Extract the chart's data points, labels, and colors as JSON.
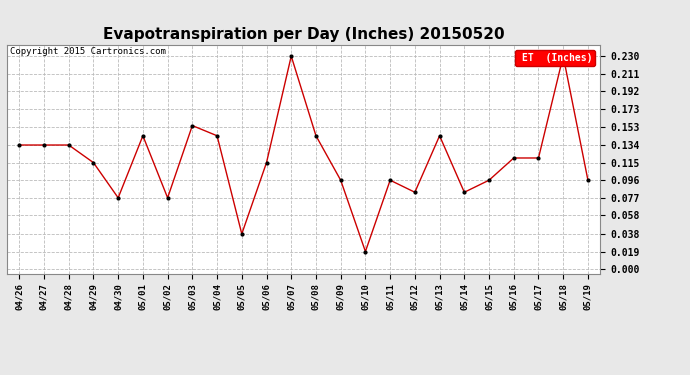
{
  "title": "Evapotranspiration per Day (Inches) 20150520",
  "copyright": "Copyright 2015 Cartronics.com",
  "legend_label": "ET  (Inches)",
  "legend_bg": "#ff0000",
  "legend_text_color": "#ffffff",
  "dates": [
    "04/26",
    "04/27",
    "04/28",
    "04/29",
    "04/30",
    "05/01",
    "05/02",
    "05/03",
    "05/04",
    "05/05",
    "05/06",
    "05/07",
    "05/08",
    "05/09",
    "05/10",
    "05/11",
    "05/12",
    "05/13",
    "05/14",
    "05/15",
    "05/16",
    "05/17",
    "05/18",
    "05/19"
  ],
  "values": [
    0.134,
    0.134,
    0.134,
    0.115,
    0.077,
    0.144,
    0.077,
    0.155,
    0.144,
    0.038,
    0.115,
    0.23,
    0.144,
    0.096,
    0.019,
    0.096,
    0.083,
    0.144,
    0.083,
    0.096,
    0.12,
    0.12,
    0.23,
    0.096
  ],
  "yticks": [
    0.0,
    0.019,
    0.038,
    0.058,
    0.077,
    0.096,
    0.115,
    0.134,
    0.153,
    0.173,
    0.192,
    0.211,
    0.23
  ],
  "line_color": "#cc0000",
  "marker_color": "#000000",
  "grid_color": "#bbbbbb",
  "bg_color": "#e8e8e8",
  "plot_bg": "#ffffff",
  "title_fontsize": 11,
  "copyright_fontsize": 6.5
}
